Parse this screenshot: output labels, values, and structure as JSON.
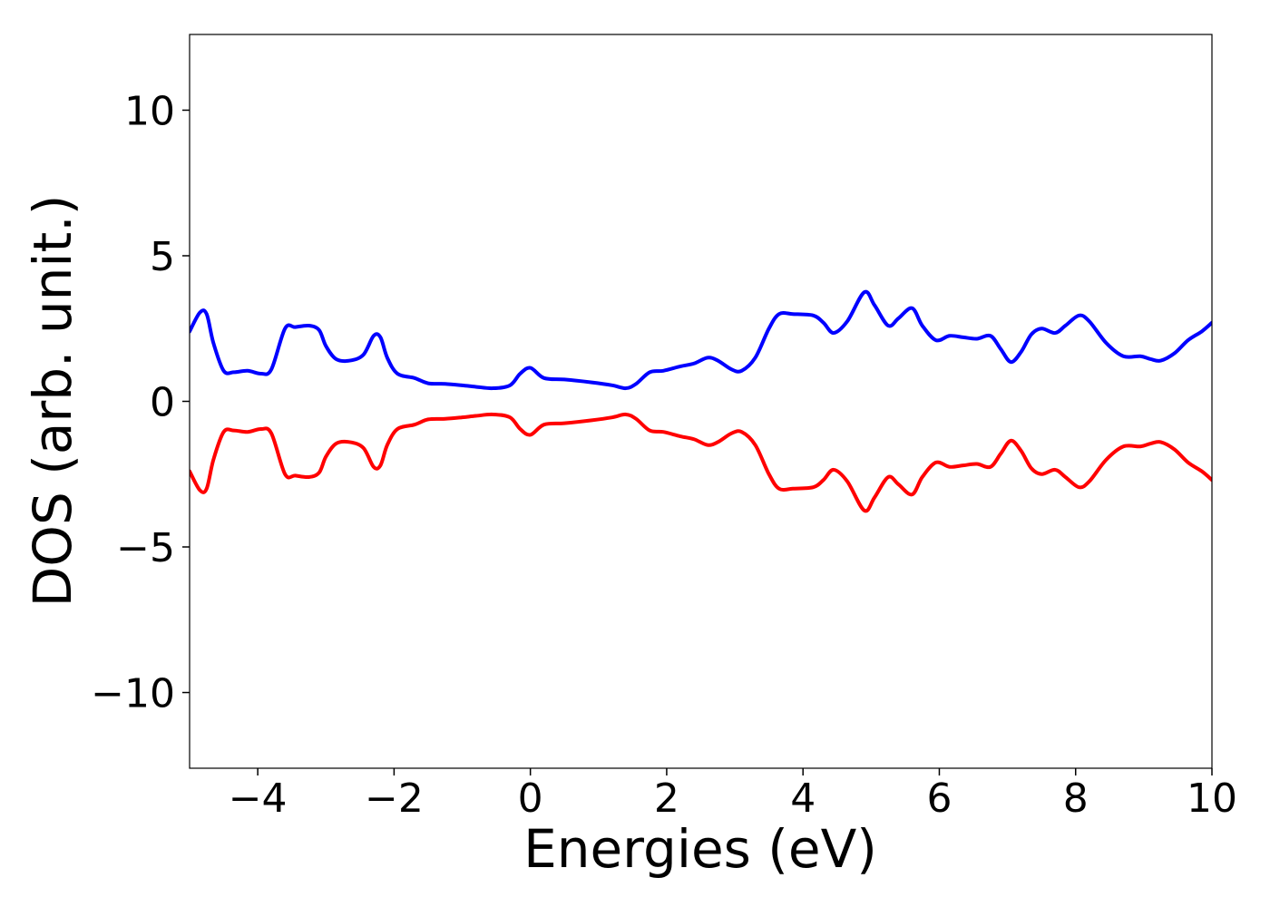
{
  "chart_data": {
    "type": "line",
    "title": "",
    "xlabel": "Energies (eV)",
    "ylabel": "DOS (arb. unit.)",
    "xlim": [
      -5,
      10
    ],
    "ylim": [
      -12.6,
      12.6
    ],
    "xticks": [
      -4,
      -2,
      0,
      2,
      4,
      6,
      8,
      10
    ],
    "xtick_labels": [
      "−4",
      "−2",
      "0",
      "2",
      "4",
      "6",
      "8",
      "10"
    ],
    "yticks": [
      -10,
      -5,
      0,
      5,
      10
    ],
    "ytick_labels": [
      "−10",
      "−5",
      "0",
      "5",
      "10"
    ],
    "grid": false,
    "legend": "none",
    "series": [
      {
        "color": "#0000ff",
        "x": [
          -5.0,
          -4.85,
          -4.75,
          -4.65,
          -4.5,
          -4.35,
          -4.15,
          -3.95,
          -3.8,
          -3.6,
          -3.45,
          -3.25,
          -3.1,
          -3.0,
          -2.85,
          -2.65,
          -2.45,
          -2.3,
          -2.2,
          -2.1,
          -1.95,
          -1.7,
          -1.5,
          -1.25,
          -1.0,
          -0.8,
          -0.55,
          -0.3,
          -0.15,
          0.0,
          0.2,
          0.5,
          0.9,
          1.2,
          1.4,
          1.55,
          1.75,
          1.95,
          2.2,
          2.4,
          2.6,
          2.75,
          2.95,
          3.1,
          3.3,
          3.5,
          3.65,
          3.85,
          4.15,
          4.3,
          4.45,
          4.65,
          4.9,
          5.05,
          5.25,
          5.4,
          5.6,
          5.75,
          5.95,
          6.15,
          6.35,
          6.55,
          6.75,
          6.9,
          7.05,
          7.2,
          7.35,
          7.5,
          7.7,
          7.85,
          8.05,
          8.2,
          8.45,
          8.7,
          8.95,
          9.1,
          9.25,
          9.45,
          9.65,
          9.85,
          10.0
        ],
        "y": [
          2.4,
          3.05,
          3.0,
          2.0,
          1.05,
          1.0,
          1.05,
          0.95,
          1.1,
          2.5,
          2.55,
          2.6,
          2.45,
          1.9,
          1.45,
          1.4,
          1.6,
          2.25,
          2.2,
          1.5,
          0.95,
          0.8,
          0.62,
          0.6,
          0.55,
          0.5,
          0.45,
          0.55,
          0.95,
          1.15,
          0.8,
          0.75,
          0.65,
          0.55,
          0.45,
          0.6,
          1.0,
          1.05,
          1.2,
          1.3,
          1.5,
          1.4,
          1.1,
          1.05,
          1.5,
          2.5,
          3.0,
          3.0,
          2.95,
          2.7,
          2.35,
          2.75,
          3.75,
          3.3,
          2.6,
          2.85,
          3.2,
          2.6,
          2.1,
          2.25,
          2.2,
          2.15,
          2.25,
          1.8,
          1.35,
          1.7,
          2.3,
          2.5,
          2.35,
          2.6,
          2.95,
          2.75,
          2.0,
          1.55,
          1.55,
          1.45,
          1.4,
          1.65,
          2.1,
          2.4,
          2.7
        ]
      },
      {
        "color": "#ff0000",
        "x": [
          -5.0,
          -4.85,
          -4.75,
          -4.65,
          -4.5,
          -4.35,
          -4.15,
          -3.95,
          -3.8,
          -3.6,
          -3.45,
          -3.25,
          -3.1,
          -3.0,
          -2.85,
          -2.65,
          -2.45,
          -2.3,
          -2.2,
          -2.1,
          -1.95,
          -1.7,
          -1.5,
          -1.25,
          -1.0,
          -0.8,
          -0.55,
          -0.3,
          -0.15,
          0.0,
          0.2,
          0.5,
          0.9,
          1.2,
          1.4,
          1.55,
          1.75,
          1.95,
          2.2,
          2.4,
          2.6,
          2.75,
          2.95,
          3.1,
          3.3,
          3.5,
          3.65,
          3.85,
          4.15,
          4.3,
          4.45,
          4.65,
          4.9,
          5.05,
          5.25,
          5.4,
          5.6,
          5.75,
          5.95,
          6.15,
          6.35,
          6.55,
          6.75,
          6.9,
          7.05,
          7.2,
          7.35,
          7.5,
          7.7,
          7.85,
          8.05,
          8.2,
          8.45,
          8.7,
          8.95,
          9.1,
          9.25,
          9.45,
          9.65,
          9.85,
          10.0
        ],
        "y": [
          -2.4,
          -3.05,
          -3.0,
          -2.0,
          -1.05,
          -1.0,
          -1.05,
          -0.95,
          -1.1,
          -2.5,
          -2.55,
          -2.6,
          -2.45,
          -1.9,
          -1.45,
          -1.4,
          -1.6,
          -2.25,
          -2.2,
          -1.5,
          -0.95,
          -0.8,
          -0.62,
          -0.6,
          -0.55,
          -0.5,
          -0.45,
          -0.55,
          -0.95,
          -1.15,
          -0.8,
          -0.75,
          -0.65,
          -0.55,
          -0.45,
          -0.6,
          -1.0,
          -1.05,
          -1.2,
          -1.3,
          -1.5,
          -1.4,
          -1.1,
          -1.05,
          -1.5,
          -2.5,
          -3.0,
          -3.0,
          -2.95,
          -2.7,
          -2.35,
          -2.75,
          -3.75,
          -3.3,
          -2.6,
          -2.85,
          -3.2,
          -2.6,
          -2.1,
          -2.25,
          -2.2,
          -2.15,
          -2.25,
          -1.8,
          -1.35,
          -1.7,
          -2.3,
          -2.5,
          -2.35,
          -2.6,
          -2.95,
          -2.75,
          -2.0,
          -1.55,
          -1.55,
          -1.45,
          -1.4,
          -1.65,
          -2.1,
          -2.4,
          -2.7
        ]
      }
    ]
  }
}
